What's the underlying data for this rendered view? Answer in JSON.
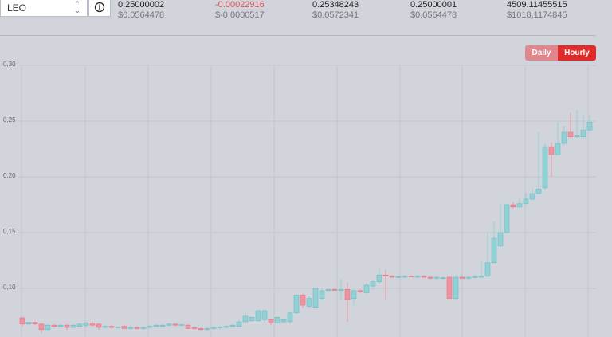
{
  "header": {
    "symbol": "LEO",
    "stats": [
      {
        "value": "0.25000002",
        "usd": "$0.0564478"
      },
      {
        "value": "-0.00022916",
        "usd": "$-0.0000517"
      },
      {
        "value": "0.25348243",
        "usd": "$0.0572341"
      },
      {
        "value": "0.25000001",
        "usd": "$0.0564478"
      },
      {
        "value": "4509.11455515",
        "usd": "$1018.1174845"
      }
    ]
  },
  "buttons": [
    "Daily",
    "Hourly"
  ],
  "chart_data": {
    "type": "candlestick",
    "open": [
      0.0736,
      0.068,
      0.0695,
      0.068,
      0.063,
      0.067,
      0.066,
      0.067,
      0.065,
      0.066,
      0.067,
      0.069,
      0.068,
      0.065,
      0.066,
      0.065,
      0.066,
      0.064,
      0.065,
      0.064,
      0.065,
      0.066,
      0.066,
      0.067,
      0.068,
      0.067,
      0.067,
      0.065,
      0.064,
      0.063,
      0.064,
      0.065,
      0.065,
      0.066,
      0.066,
      0.07,
      0.071,
      0.071,
      0.072,
      0.072,
      0.069,
      0.07,
      0.07,
      0.078,
      0.094,
      0.084,
      0.083,
      0.091,
      0.098,
      0.099,
      0.098,
      0.099,
      0.091,
      0.098,
      0.096,
      0.102,
      0.106,
      0.112,
      0.111,
      0.11,
      0.11,
      0.111,
      0.11,
      0.111,
      0.11,
      0.109,
      0.109,
      0.11,
      0.091,
      0.11,
      0.109,
      0.11,
      0.11,
      0.111,
      0.123,
      0.138,
      0.15,
      0.175,
      0.173,
      0.176,
      0.18,
      0.185,
      0.19,
      0.227,
      0.22,
      0.23,
      0.24,
      0.236,
      0.236,
      0.242
    ],
    "high": [
      0.074,
      0.07,
      0.07,
      0.069,
      0.068,
      0.068,
      0.068,
      0.068,
      0.068,
      0.069,
      0.07,
      0.07,
      0.069,
      0.067,
      0.067,
      0.066,
      0.067,
      0.067,
      0.066,
      0.066,
      0.067,
      0.068,
      0.068,
      0.069,
      0.069,
      0.068,
      0.068,
      0.066,
      0.065,
      0.065,
      0.066,
      0.066,
      0.067,
      0.068,
      0.071,
      0.079,
      0.075,
      0.081,
      0.081,
      0.073,
      0.075,
      0.073,
      0.079,
      0.095,
      0.095,
      0.093,
      0.1,
      0.1,
      0.1,
      0.1,
      0.108,
      0.105,
      0.099,
      0.099,
      0.105,
      0.107,
      0.118,
      0.117,
      0.112,
      0.111,
      0.112,
      0.112,
      0.112,
      0.112,
      0.111,
      0.111,
      0.111,
      0.111,
      0.111,
      0.111,
      0.111,
      0.112,
      0.124,
      0.15,
      0.16,
      0.176,
      0.176,
      0.177,
      0.181,
      0.186,
      0.19,
      0.24,
      0.23,
      0.231,
      0.249,
      0.246,
      0.257,
      0.26,
      0.256,
      0.256
    ],
    "low": [
      0.066,
      0.067,
      0.067,
      0.06,
      0.062,
      0.065,
      0.065,
      0.063,
      0.064,
      0.065,
      0.065,
      0.066,
      0.063,
      0.064,
      0.064,
      0.064,
      0.064,
      0.063,
      0.063,
      0.063,
      0.064,
      0.065,
      0.065,
      0.066,
      0.066,
      0.066,
      0.064,
      0.063,
      0.062,
      0.062,
      0.063,
      0.063,
      0.064,
      0.065,
      0.065,
      0.069,
      0.07,
      0.07,
      0.069,
      0.067,
      0.068,
      0.069,
      0.069,
      0.077,
      0.083,
      0.083,
      0.082,
      0.09,
      0.097,
      0.098,
      0.09,
      0.07,
      0.085,
      0.096,
      0.095,
      0.099,
      0.104,
      0.09,
      0.109,
      0.109,
      0.109,
      0.11,
      0.109,
      0.109,
      0.108,
      0.108,
      0.108,
      0.091,
      0.09,
      0.109,
      0.108,
      0.109,
      0.109,
      0.11,
      0.122,
      0.137,
      0.149,
      0.172,
      0.172,
      0.175,
      0.179,
      0.184,
      0.189,
      0.2,
      0.219,
      0.229,
      0.235,
      0.235,
      0.234,
      0.241
    ],
    "close": [
      0.068,
      0.0695,
      0.068,
      0.063,
      0.067,
      0.066,
      0.067,
      0.065,
      0.067,
      0.068,
      0.069,
      0.067,
      0.065,
      0.066,
      0.065,
      0.0655,
      0.064,
      0.065,
      0.064,
      0.065,
      0.066,
      0.067,
      0.067,
      0.068,
      0.067,
      0.0675,
      0.064,
      0.064,
      0.063,
      0.064,
      0.065,
      0.0655,
      0.066,
      0.067,
      0.07,
      0.075,
      0.074,
      0.08,
      0.08,
      0.069,
      0.074,
      0.072,
      0.078,
      0.094,
      0.085,
      0.091,
      0.1,
      0.098,
      0.099,
      0.0985,
      0.099,
      0.09,
      0.098,
      0.097,
      0.103,
      0.106,
      0.112,
      0.111,
      0.11,
      0.1105,
      0.111,
      0.1105,
      0.111,
      0.11,
      0.109,
      0.11,
      0.1095,
      0.091,
      0.11,
      0.109,
      0.11,
      0.1105,
      0.111,
      0.123,
      0.145,
      0.15,
      0.175,
      0.173,
      0.176,
      0.18,
      0.185,
      0.189,
      0.227,
      0.22,
      0.23,
      0.24,
      0.236,
      0.237,
      0.242,
      0.249
    ],
    "ylim": [
      0.056,
      0.3
    ],
    "yticks": [
      {
        "value": 0.1,
        "label": "0,10"
      },
      {
        "value": 0.15,
        "label": "0,15"
      },
      {
        "value": 0.2,
        "label": "0,20"
      },
      {
        "value": 0.25,
        "label": "0,25"
      },
      {
        "value": 0.3,
        "label": "0,30"
      }
    ],
    "up_color": "#8fd1d4",
    "down_color": "#f0929f",
    "grid": true
  }
}
